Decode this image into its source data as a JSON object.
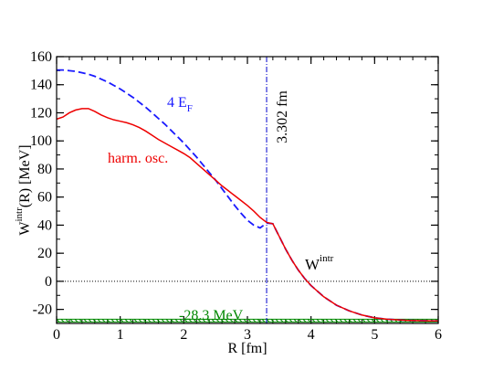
{
  "chart_data": {
    "type": "line",
    "xlabel": "R [fm]",
    "ylabel": {
      "base": "W",
      "sup": "intr",
      "rest": "(R) [MeV]"
    },
    "xlim": [
      0,
      6
    ],
    "ylim": [
      -30,
      160
    ],
    "x_ticks": [
      0,
      1,
      2,
      3,
      4,
      5,
      6
    ],
    "y_ticks": [
      -20,
      0,
      20,
      40,
      60,
      80,
      100,
      120,
      140,
      160
    ],
    "x_minor_step": 0.2,
    "y_minor_step": 10,
    "colors": {
      "harm": "#ee0000",
      "ef": "#1a1aff",
      "dashdot": "#0000cc",
      "band": "#008800",
      "zero": "#000000"
    },
    "series": [
      {
        "name": "harm. osc.",
        "style": "solid",
        "color": "#ee0000",
        "x": [
          0,
          0.1,
          0.2,
          0.3,
          0.4,
          0.5,
          0.6,
          0.7,
          0.8,
          0.9,
          1.0,
          1.1,
          1.2,
          1.3,
          1.4,
          1.5,
          1.6,
          1.7,
          1.8,
          1.9,
          2.0,
          2.1,
          2.2,
          2.3,
          2.4,
          2.5,
          2.6,
          2.7,
          2.8,
          2.9,
          3.0,
          3.1,
          3.2,
          3.3,
          3.4,
          3.5,
          3.6,
          3.7,
          3.8,
          3.9,
          4.0,
          4.2,
          4.4,
          4.6,
          4.8,
          5.0,
          5.2,
          5.5,
          5.8,
          6.0
        ],
        "values": [
          115.5,
          117,
          120,
          122,
          123,
          123,
          121,
          118.5,
          116.5,
          115,
          114,
          113,
          111.5,
          109.5,
          107,
          104,
          101,
          98.5,
          96,
          93.5,
          91,
          88,
          84,
          80,
          76,
          72,
          68,
          64.5,
          61,
          57.5,
          54,
          50,
          45.5,
          42,
          41,
          32,
          23,
          15,
          8,
          2,
          -3,
          -11,
          -17,
          -21,
          -24,
          -26,
          -27,
          -27.8,
          -28.1,
          -28.2
        ]
      },
      {
        "name": "4 E_F",
        "style": "dashed",
        "color": "#1a1aff",
        "x": [
          0,
          0.1,
          0.2,
          0.3,
          0.4,
          0.5,
          0.6,
          0.7,
          0.8,
          0.9,
          1.0,
          1.1,
          1.2,
          1.3,
          1.4,
          1.5,
          1.6,
          1.7,
          1.8,
          1.9,
          2.0,
          2.1,
          2.2,
          2.3,
          2.4,
          2.5,
          2.6,
          2.7,
          2.8,
          2.9,
          3.0,
          3.1,
          3.2,
          3.3,
          3.4,
          3.5,
          3.6,
          3.7,
          3.8,
          3.9,
          4.0,
          4.2,
          4.4,
          4.6,
          4.8,
          5.0,
          5.2,
          5.5,
          5.8,
          6.0
        ],
        "values": [
          150.5,
          150.5,
          150,
          149.5,
          148.5,
          147.5,
          146,
          144,
          142,
          139.5,
          137,
          134,
          131,
          127.5,
          124,
          120,
          116,
          112,
          107.5,
          103,
          98.5,
          93.5,
          88.5,
          83,
          77.5,
          72,
          66,
          60,
          54,
          48.5,
          43.5,
          40,
          38,
          41.5,
          41,
          32,
          23,
          15,
          8,
          2,
          -3,
          -11,
          -17,
          -21,
          -24,
          -26,
          -27,
          -27.8,
          -28.1,
          -28.2
        ]
      }
    ],
    "vline": {
      "x": 3.302,
      "label": "3.302 fm"
    },
    "hline_zero": 0,
    "band": {
      "y": -28.3,
      "label": "-28.3 MeV"
    },
    "annotations": {
      "ef_base": "4 E",
      "ef_sub": "F",
      "harm": "harm. osc.",
      "w_base": "W",
      "w_sup": "intr"
    }
  }
}
